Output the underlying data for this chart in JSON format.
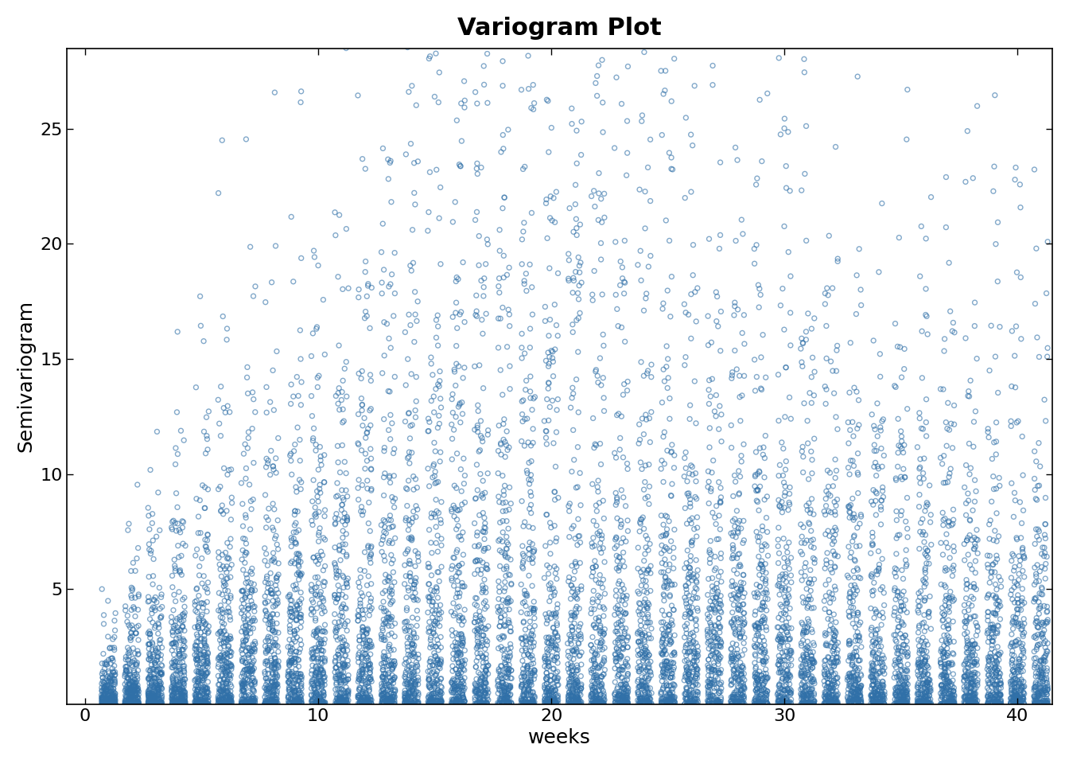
{
  "title": "Variogram Plot",
  "xlabel": "weeks",
  "ylabel": "Semivariogram",
  "xlim": [
    -0.8,
    41.5
  ],
  "ylim": [
    0,
    28.5
  ],
  "xticks": [
    0,
    10,
    20,
    30,
    40
  ],
  "yticks": [
    5,
    10,
    15,
    20,
    25
  ],
  "marker_color": "#3070a8",
  "marker_facecolor": "none",
  "marker_size": 18,
  "marker_linewidth": 1.0,
  "background_color": "#ffffff",
  "title_fontsize": 22,
  "label_fontsize": 18,
  "tick_fontsize": 16,
  "seed": 123,
  "n_obs": 300,
  "max_lag_weeks": 41
}
